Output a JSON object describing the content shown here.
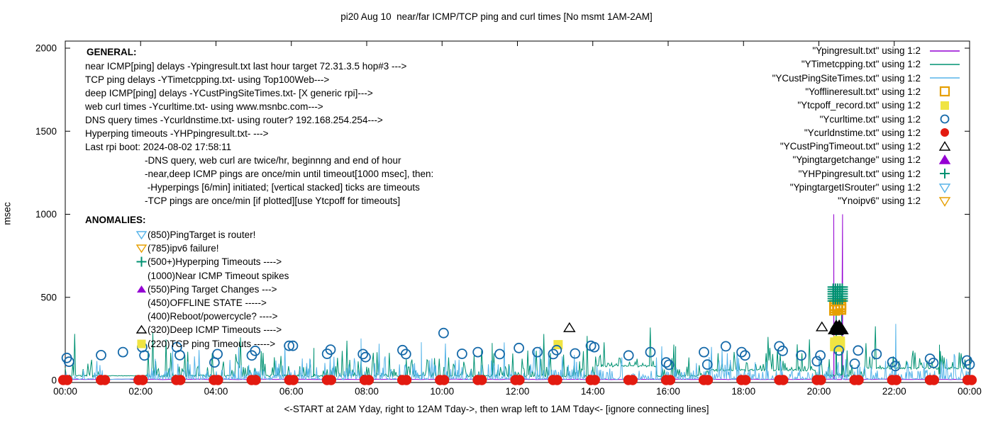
{
  "title": "pi20 Aug 10  near/far ICMP/TCP ping and curl times [No msmt 1AM-2AM]",
  "ylabel": "msec",
  "xlabel": "<-START at 2AM Yday, right to 12AM Tday->, then wrap left to 1AM Tday<- [ignore connecting lines]",
  "general": {
    "heading": "GENERAL:",
    "lines": [
      "near ICMP[ping] delays -Ypingresult.txt last hour target 72.31.3.5 hop#3 --->",
      "TCP ping delays -YTimetcpping.txt- using Top100Web--->",
      "deep ICMP[ping] delays -YCustPingSiteTimes.txt- [X generic rpi]--->",
      "web curl times -Ycurltime.txt- using www.msnbc.com--->",
      "DNS query times -Ycurldnstime.txt- using router? 192.168.254.254--->",
      "Hyperping timeouts -YHPpingresult.txt- --->",
      "Last rpi boot: 2024-08-02 17:58:11"
    ],
    "notes": [
      "-DNS query, web curl are twice/hr, beginnng and end of hour",
      "-near,deep ICMP pings are once/min until timeout[1000 msec], then:",
      " -Hyperpings [6/min] initiated; [vertical stacked] ticks are timeouts",
      "-TCP pings are once/min [if plotted][use Ytcpoff for timeouts]"
    ]
  },
  "anomalies": {
    "heading": "ANOMALIES:",
    "items": [
      {
        "icon": "down-triangle-open",
        "color": "#56b4e9",
        "label": "(850)PingTarget is router!"
      },
      {
        "icon": "down-triangle-open",
        "color": "#e69f00",
        "label": "(785)ipv6 failure!"
      },
      {
        "icon": "plus",
        "color": "#009272",
        "label": "(500+)Hyperping Timeouts ---->"
      },
      {
        "icon": "none",
        "color": "",
        "label": "(1000)Near ICMP Timeout spikes"
      },
      {
        "icon": "up-triangle-filled",
        "color": "#9400d3",
        "label": "(550)Ping Target Changes --->"
      },
      {
        "icon": "none",
        "color": "",
        "label": "(450)OFFLINE STATE ----->"
      },
      {
        "icon": "none",
        "color": "",
        "label": "(400)Reboot/powercycle? ---->"
      },
      {
        "icon": "up-triangle-open",
        "color": "#000000",
        "label": "(320)Deep ICMP Timeouts ---->"
      },
      {
        "icon": "square-filled",
        "color": "#f0e442",
        "label": "(220)TCP ping Timeouts ----->"
      }
    ]
  },
  "chart_data": {
    "type": "line+scatter",
    "x_axis": {
      "unit": "time of day",
      "range_hours": [
        0,
        24
      ],
      "tick_labels": [
        "00:00",
        "02:00",
        "04:00",
        "06:00",
        "08:00",
        "10:00",
        "12:00",
        "14:00",
        "16:00",
        "18:00",
        "20:00",
        "22:00",
        "00:00"
      ],
      "note": "measurements start 2AM yesterday, wrap left to 1AM today; no measurement 1AM-2AM"
    },
    "y_axis": {
      "unit": "msec",
      "range": [
        0,
        2000
      ],
      "ticks": [
        0,
        500,
        1000,
        1500,
        2000
      ],
      "tick_labels": [
        "0",
        "500",
        "1000",
        "1500",
        "2000"
      ]
    },
    "no_measurement_gap_hours": [
      1.0,
      2.05
    ],
    "series": [
      {
        "name": "Ypingresult.txt",
        "legend_label": "\"Ypingresult.txt\" using 1:2",
        "style": "line",
        "color": "#9400d3",
        "base": 6,
        "segments": [
          [
            0,
            24.04
          ]
        ],
        "noise": {
          "seed": 7,
          "step": 0.1,
          "levels": [
            [
              1,
              -1.5,
              1.5
            ]
          ]
        },
        "timeout_box": {
          "from": 20.395,
          "to": 20.63,
          "top": 1000
        }
      },
      {
        "name": "YTimetcpping.txt",
        "legend_label": "\"YTimetcpping.txt\" using 1:2",
        "style": "line",
        "color": "#009272",
        "base": 30,
        "segments": [
          [
            0,
            24.04
          ]
        ],
        "flat_segments": [
          [
            1.0,
            2.05,
            28,
            1
          ],
          [
            14.1,
            15.7,
            90,
            0
          ],
          [
            17.1,
            19.9,
            64,
            0
          ],
          [
            21.2,
            24.04,
            76,
            0
          ]
        ],
        "noise": {
          "seed": 2024,
          "step": 0.025,
          "levels": [
            [
              0.68,
              -9,
              4
            ],
            [
              0.9,
              10,
              60
            ],
            [
              0.985,
              60,
              150
            ],
            [
              1,
              150,
              260
            ]
          ]
        },
        "extra_spikes": [
          [
            6.6,
            195
          ],
          [
            11.33,
            225
          ],
          [
            16.2,
            205
          ],
          [
            20.46,
            560
          ],
          [
            20.6,
            525
          ],
          [
            23.2,
            215
          ]
        ]
      },
      {
        "name": "YCustPingSiteTimes.txt",
        "legend_label": "\"YCustPingSiteTimes.txt\" using 1:2",
        "style": "line",
        "color": "#56b4e9",
        "base": 5,
        "segments": [
          [
            0,
            1.0
          ],
          [
            2.05,
            24.04
          ]
        ],
        "noise": {
          "seed": 1337,
          "step": 0.02,
          "levels": [
            [
              0.6,
              0,
              8
            ],
            [
              0.88,
              10,
              60
            ],
            [
              0.975,
              60,
              140
            ],
            [
              1,
              140,
              230
            ]
          ]
        },
        "extra_spikes": [
          [
            4.6,
            200
          ],
          [
            7.85,
            252
          ],
          [
            9.45,
            230
          ],
          [
            12.6,
            205
          ],
          [
            22.04,
            340
          ]
        ]
      },
      {
        "name": "Yofflineresult.txt",
        "legend_label": "\"Yofflineresult.txt\" using 1:2",
        "style": "squares-open",
        "color": "#e69f00",
        "points": [
          [
            20.42,
            423
          ],
          [
            20.42,
            437
          ],
          [
            20.42,
            451
          ],
          [
            20.5,
            430
          ],
          [
            20.5,
            446
          ],
          [
            20.58,
            428
          ],
          [
            20.58,
            442
          ],
          [
            20.58,
            456
          ]
        ]
      },
      {
        "name": "Ytcpoff_record.txt",
        "legend_label": "\"Ytcpoff_record.txt\" using 1:2",
        "style": "squares-filled",
        "color": "#f0e442",
        "points": [
          [
            13.08,
            215
          ],
          [
            20.42,
            203
          ],
          [
            20.42,
            217
          ],
          [
            20.42,
            231
          ],
          [
            20.5,
            200
          ],
          [
            20.5,
            240
          ],
          [
            20.57,
            208
          ],
          [
            20.57,
            222
          ],
          [
            20.57,
            236
          ]
        ]
      },
      {
        "name": "Ycurltime.txt",
        "legend_label": "\"Ycurltime.txt\" using 1:2",
        "style": "circles-open",
        "color": "#1569a9",
        "points": [
          [
            0.04,
            135
          ],
          [
            0.1,
            112
          ],
          [
            0.95,
            152
          ],
          [
            1.53,
            170
          ],
          [
            2.04,
            200
          ],
          [
            2.1,
            150
          ],
          [
            2.96,
            200
          ],
          [
            3.04,
            152
          ],
          [
            3.96,
            108
          ],
          [
            4.04,
            158
          ],
          [
            4.95,
            150
          ],
          [
            5.04,
            178
          ],
          [
            5.94,
            208
          ],
          [
            6.04,
            208
          ],
          [
            6.95,
            160
          ],
          [
            7.04,
            185
          ],
          [
            7.9,
            158
          ],
          [
            7.97,
            140
          ],
          [
            8.95,
            182
          ],
          [
            9.04,
            158
          ],
          [
            10.04,
            285
          ],
          [
            10.53,
            160
          ],
          [
            10.95,
            170
          ],
          [
            11.53,
            158
          ],
          [
            12.04,
            195
          ],
          [
            12.53,
            170
          ],
          [
            12.95,
            158
          ],
          [
            13.04,
            182
          ],
          [
            13.53,
            162
          ],
          [
            13.95,
            208
          ],
          [
            14.04,
            200
          ],
          [
            14.95,
            150
          ],
          [
            15.53,
            170
          ],
          [
            15.95,
            108
          ],
          [
            16.02,
            94
          ],
          [
            16.95,
            170
          ],
          [
            17.04,
            95
          ],
          [
            17.53,
            205
          ],
          [
            17.95,
            170
          ],
          [
            18.04,
            150
          ],
          [
            18.95,
            205
          ],
          [
            19.04,
            178
          ],
          [
            19.53,
            150
          ],
          [
            19.95,
            115
          ],
          [
            20.04,
            150
          ],
          [
            20.53,
            180
          ],
          [
            20.95,
            100
          ],
          [
            21.04,
            180
          ],
          [
            21.53,
            158
          ],
          [
            21.95,
            110
          ],
          [
            22.03,
            86
          ],
          [
            22.95,
            130
          ],
          [
            23.04,
            105
          ],
          [
            23.93,
            120
          ],
          [
            24.0,
            96
          ]
        ]
      },
      {
        "name": "Ycurldnstime.txt",
        "legend_label": "\"Ycurldnstime.txt\" using 1:2",
        "style": "dots",
        "color": "#e31a10",
        "hours": [
          0,
          1,
          2,
          3,
          4,
          5,
          6,
          7,
          8,
          9,
          10,
          11,
          12,
          13,
          14,
          15,
          16,
          17,
          18,
          19,
          20,
          21,
          22,
          23,
          24
        ],
        "value": 2
      },
      {
        "name": "YCustPingTimeout.txt",
        "legend_label": "\"YCustPingTimeout.txt\" using 1:2",
        "style": "triangles",
        "color": "#000000",
        "points": [
          [
            13.38,
            315,
            0
          ],
          [
            20.08,
            320,
            0
          ],
          [
            20.4,
            302,
            1
          ],
          [
            20.44,
            312,
            1
          ],
          [
            20.48,
            320,
            1
          ],
          [
            20.52,
            306,
            1
          ],
          [
            20.56,
            322,
            1
          ],
          [
            20.6,
            314,
            1
          ],
          [
            20.63,
            302,
            1
          ],
          [
            20.46,
            330,
            1
          ],
          [
            20.54,
            331,
            1
          ],
          [
            20.5,
            298,
            1
          ]
        ]
      },
      {
        "name": "Ypingtargetchange",
        "legend_label": "\"Ypingtargetchange\" using 1:2",
        "style": "triangles",
        "color": "#9400d3",
        "filled_all": 1,
        "points": []
      },
      {
        "name": "YHPpingresult.txt",
        "legend_label": "\"YHPpingresult.txt\" using 1:2",
        "style": "plus",
        "color": "#009272",
        "columns_h": [
          20.38,
          20.44,
          20.5,
          20.56,
          20.62
        ],
        "values": [
          478,
          492,
          506,
          520,
          534,
          548,
          562
        ]
      },
      {
        "name": "YpingtargetISrouter",
        "legend_label": "\"YpingtargetISrouter\" using 1:2",
        "style": "down-triangles-open",
        "color": "#56b4e9",
        "points": []
      },
      {
        "name": "Ynoipv6",
        "legend_label": "\"Ynoipv6\" using 1:2",
        "style": "down-triangles-open",
        "color": "#e69f00",
        "points": []
      }
    ]
  }
}
